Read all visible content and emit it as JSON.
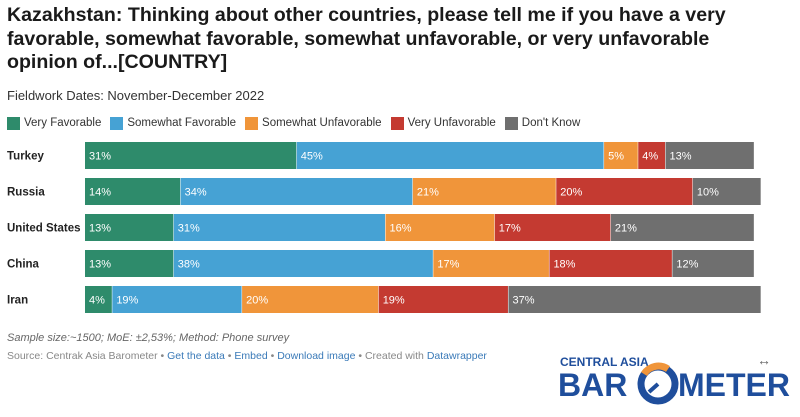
{
  "chart_data": {
    "type": "bar",
    "orientation": "horizontal",
    "stacked": true,
    "title": "Kazakhstan: Thinking about other countries, please tell me if you have a very favorable, somewhat favorable, somewhat unfavorable, or very unfavorable opinion of...[COUNTRY]",
    "subtitle": "Fieldwork Dates: November-December 2022",
    "categories": [
      "Turkey",
      "Russia",
      "United States",
      "China",
      "Iran"
    ],
    "series": [
      {
        "name": "Very Favorable",
        "color": "#2e8b6b",
        "values": [
          31,
          14,
          13,
          13,
          4
        ]
      },
      {
        "name": "Somewhat Favorable",
        "color": "#46a2d4",
        "values": [
          45,
          34,
          31,
          38,
          19
        ]
      },
      {
        "name": "Somewhat Unfavorable",
        "color": "#f0953a",
        "values": [
          5,
          21,
          16,
          17,
          20
        ]
      },
      {
        "name": "Very Unfavorable",
        "color": "#c43a31",
        "values": [
          4,
          20,
          17,
          18,
          19
        ]
      },
      {
        "name": "Don't Know",
        "color": "#6f6f6f",
        "values": [
          13,
          10,
          21,
          12,
          37
        ]
      }
    ],
    "value_suffix": "%",
    "legend_position": "top-left"
  },
  "footer": {
    "note": "Sample size:~1500; MoE: ±2,53%; Method: Phone survey",
    "source_prefix": "Source: Centrak Asia Barometer",
    "links": [
      "Get the data",
      "Embed",
      "Download image"
    ],
    "created_prefix": "Created with",
    "created_link": "Datawrapper",
    "separator": " • "
  },
  "logo": {
    "top_text": "CENTRAL ASIA",
    "left_text": "BAR",
    "right_text": "METER",
    "color": "#1f4e9c",
    "accent": "#f0953a"
  },
  "icons": {
    "expand": "↔"
  }
}
